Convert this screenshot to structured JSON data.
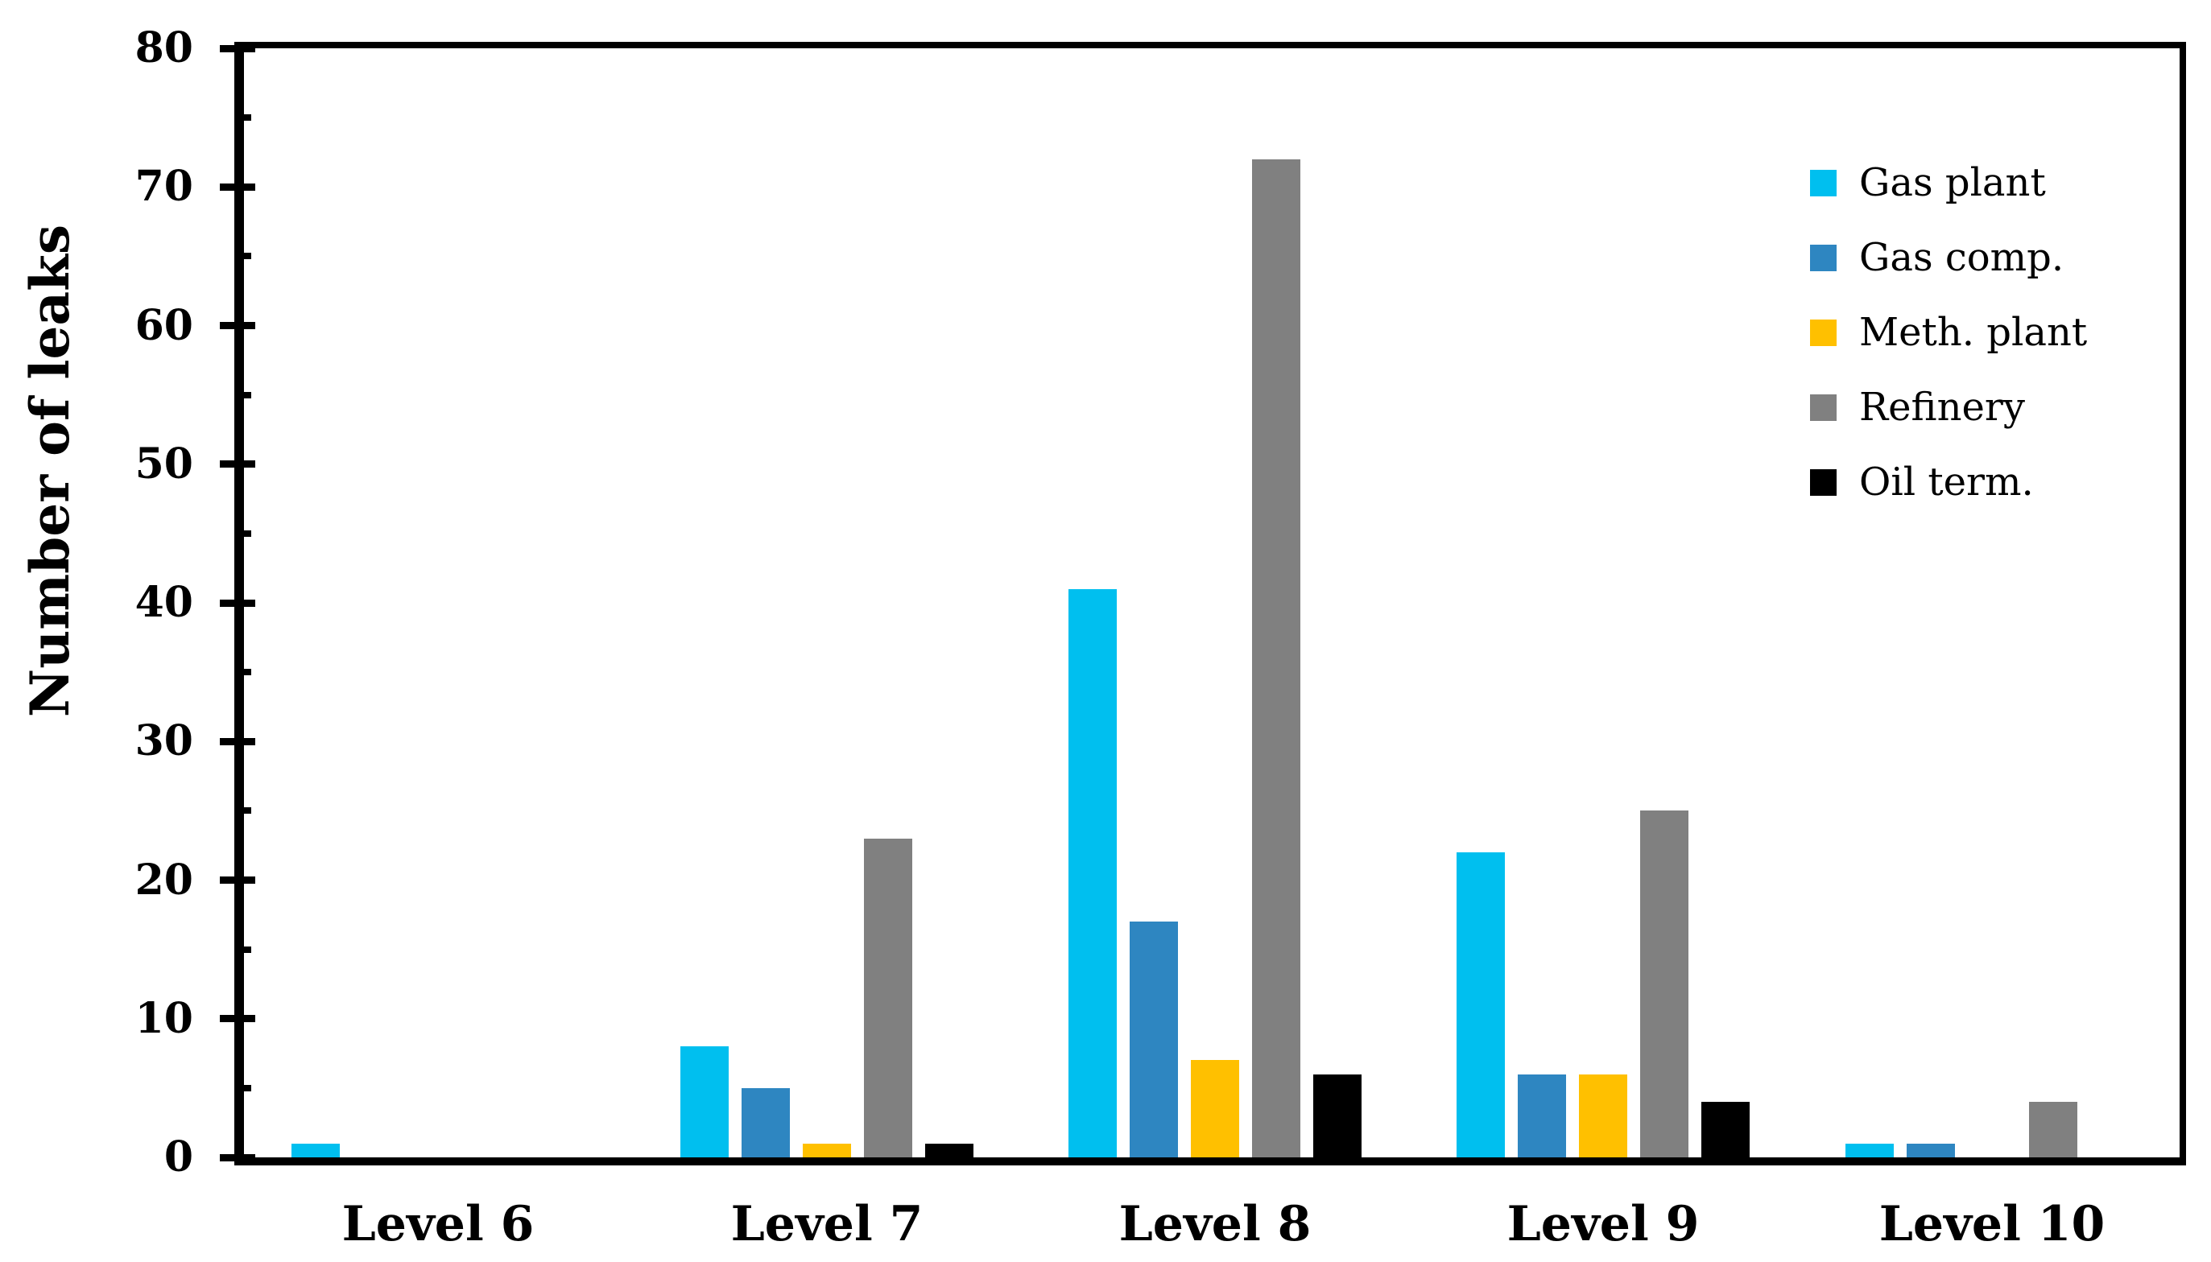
{
  "chart_data": {
    "type": "bar",
    "title": "",
    "ylabel": "Number of leaks",
    "xlabel": "",
    "categories": [
      "Level 6",
      "Level 7",
      "Level 8",
      "Level 9",
      "Level 10"
    ],
    "series": [
      {
        "name": "Gas plant",
        "color": "#00BFEF",
        "values": [
          1,
          8,
          41,
          22,
          1
        ]
      },
      {
        "name": "Gas comp.",
        "color": "#2E86C1",
        "values": [
          0,
          5,
          17,
          6,
          1
        ]
      },
      {
        "name": "Meth. plant",
        "color": "#FFC000",
        "values": [
          0,
          1,
          7,
          6,
          0
        ]
      },
      {
        "name": "Refinery",
        "color": "#808080",
        "values": [
          0,
          23,
          72,
          25,
          4
        ]
      },
      {
        "name": "Oil term.",
        "color": "#000000",
        "values": [
          0,
          1,
          6,
          4,
          0
        ]
      }
    ],
    "ylim": [
      0,
      80
    ],
    "y_tick_labels": [
      "0",
      "10",
      "20",
      "30",
      "40",
      "50",
      "60",
      "70",
      "80"
    ],
    "y_major_tick_step": 10,
    "y_minor_tick_step": 5,
    "grid": "off",
    "legend_position": "upper-right",
    "axis_color": "#000000",
    "background": "#FFFFFF"
  }
}
